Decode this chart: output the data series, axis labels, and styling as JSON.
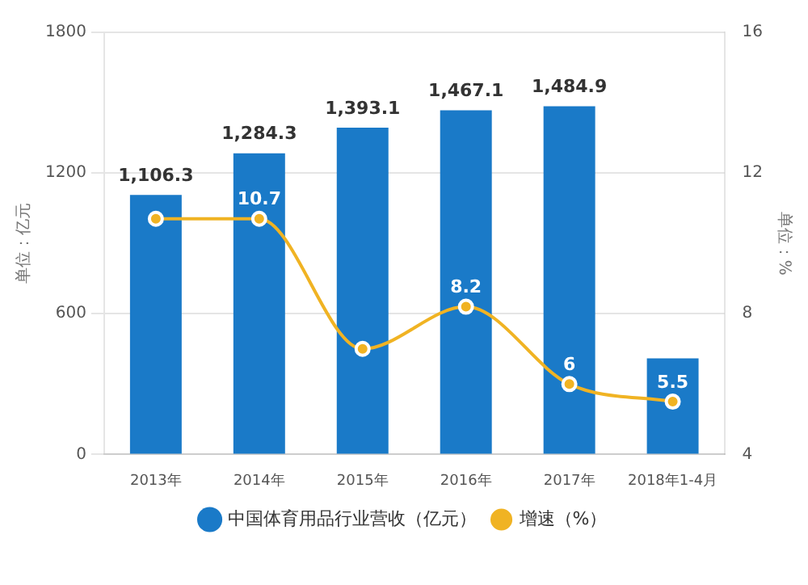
{
  "chart_data": {
    "type": "bar",
    "categories": [
      "2013年",
      "2014年",
      "2015年",
      "2016年",
      "2017年",
      "2018年1-4月"
    ],
    "series": [
      {
        "name": "中国体育用品行业营收（亿元）",
        "color": "#1a7ac8",
        "values": [
          1106.3,
          1284.3,
          1393.1,
          1467.1,
          1484.9,
          410
        ],
        "value_labels": [
          "1,106.3",
          "1,284.3",
          "1,393.1",
          "1,467.1",
          "1,484.9",
          null
        ]
      },
      {
        "name": "增速（%）",
        "type": "line",
        "axis": "y2",
        "color": "#f0b323",
        "values": [
          10.7,
          10.7,
          7,
          8.2,
          6,
          5.5
        ],
        "value_labels": [
          null,
          "10.7",
          null,
          "8.2",
          "6",
          "5.5"
        ]
      }
    ],
    "ylabel": "单位：亿元",
    "y2label": "单位：%",
    "ylim": [
      0,
      1800
    ],
    "yticks": [
      0,
      600,
      1200,
      1800
    ],
    "y2lim": [
      4,
      16
    ],
    "y2ticks": [
      4,
      8,
      12,
      16
    ],
    "grid": "y",
    "legend": "bottom",
    "marker": "circle"
  }
}
